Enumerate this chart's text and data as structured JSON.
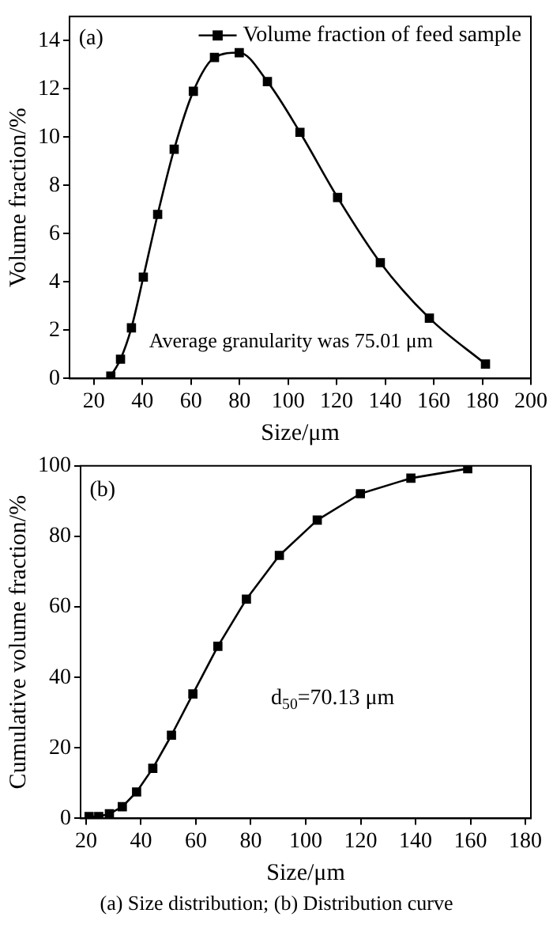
{
  "chart_data": [
    {
      "type": "line",
      "xlabel": "Size/μm",
      "ylabel": "Volume fraction/%",
      "xlim": [
        10,
        200
      ],
      "xticks": [
        20,
        40,
        60,
        80,
        100,
        120,
        140,
        160,
        180,
        200
      ],
      "ylim": [
        0,
        15
      ],
      "yticks": [
        0,
        2,
        4,
        6,
        8,
        10,
        12,
        14
      ],
      "marker": "square",
      "legend": "top right",
      "annotations": [
        "(a)",
        "Average granularity was 75.01 μm"
      ],
      "series": [
        {
          "name": "Volume fraction of feed sample",
          "color": "#000000",
          "x": [
            27.0,
            31.0,
            35.5,
            40.4,
            46.3,
            53.1,
            61.0,
            69.7,
            79.9,
            91.5,
            104.9,
            120.4,
            138.0,
            158.2,
            181.3
          ],
          "values": [
            0.1,
            0.8,
            2.1,
            4.2,
            6.8,
            9.5,
            11.9,
            13.3,
            13.5,
            12.3,
            10.2,
            7.5,
            4.8,
            2.5,
            0.6
          ]
        }
      ]
    },
    {
      "type": "line",
      "xlabel": "Size/μm",
      "ylabel": "Cumulative volume fraction/%",
      "xlim": [
        18,
        182
      ],
      "xticks": [
        20,
        40,
        60,
        80,
        100,
        120,
        140,
        160,
        180
      ],
      "ylim": [
        0,
        100
      ],
      "yticks": [
        0,
        20,
        40,
        60,
        80,
        100
      ],
      "marker": "square",
      "annotations": [
        "(b)",
        "d$_{50}$=70.13 μm",
        "(a)  Size  distribution; (b) Distribution curve"
      ],
      "series": [
        {
          "color": "#000000",
          "x": [
            21.1,
            24.6,
            28.5,
            33.2,
            38.4,
            44.3,
            51.1,
            58.9,
            68.0,
            78.4,
            90.4,
            104.2,
            119.9,
            138.3,
            159.0
          ],
          "values": [
            0.5,
            0.5,
            1.3,
            3.3,
            7.5,
            14.2,
            23.6,
            35.3,
            48.8,
            62.2,
            74.6,
            84.6,
            92.1,
            96.5,
            99.2
          ]
        }
      ]
    }
  ]
}
